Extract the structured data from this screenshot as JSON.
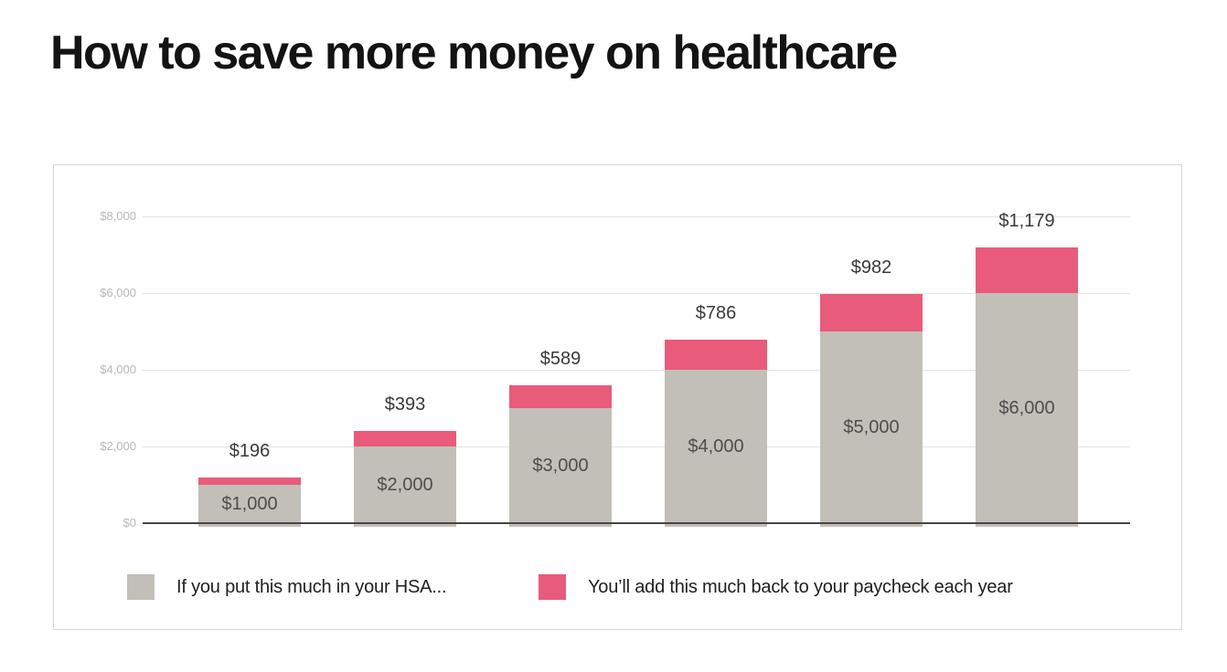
{
  "page": {
    "title": "How to save more money on healthcare"
  },
  "chart_data": {
    "type": "bar",
    "stacked": true,
    "title": "How to save more money on healthcare",
    "xlabel": "",
    "ylabel": "",
    "ylim": [
      0,
      8000
    ],
    "grid": true,
    "legend_position": "bottom",
    "categories": [
      "1000",
      "2000",
      "3000",
      "4000",
      "5000",
      "6000"
    ],
    "series": [
      {
        "name": "If you put this much in your HSA...",
        "color": "#c2bfb8",
        "values": [
          1000,
          2000,
          3000,
          4000,
          5000,
          6000
        ],
        "labels": [
          "$1,000",
          "$2,000",
          "$3,000",
          "$4,000",
          "$5,000",
          "$6,000"
        ],
        "label_placement": "inside"
      },
      {
        "name": "You’ll add this much back to your paycheck each year",
        "color": "#e85b7a",
        "values": [
          196,
          393,
          589,
          786,
          982,
          1179
        ],
        "labels": [
          "$196",
          "$393",
          "$589",
          "$786",
          "$982",
          "$1,179"
        ],
        "label_placement": "above"
      }
    ],
    "y_ticks": [
      {
        "value": 0,
        "label": "$0"
      },
      {
        "value": 2000,
        "label": "$2,000"
      },
      {
        "value": 4000,
        "label": "$4,000"
      },
      {
        "value": 6000,
        "label": "$6,000"
      },
      {
        "value": 8000,
        "label": "$8,000"
      }
    ],
    "colors": {
      "gridline": "#e4e4e4",
      "baseline": "#454545",
      "tick_text": "#b8b8b8",
      "inner_label_text": "#4d4d4d",
      "top_label_text": "#3a3a3a"
    }
  }
}
